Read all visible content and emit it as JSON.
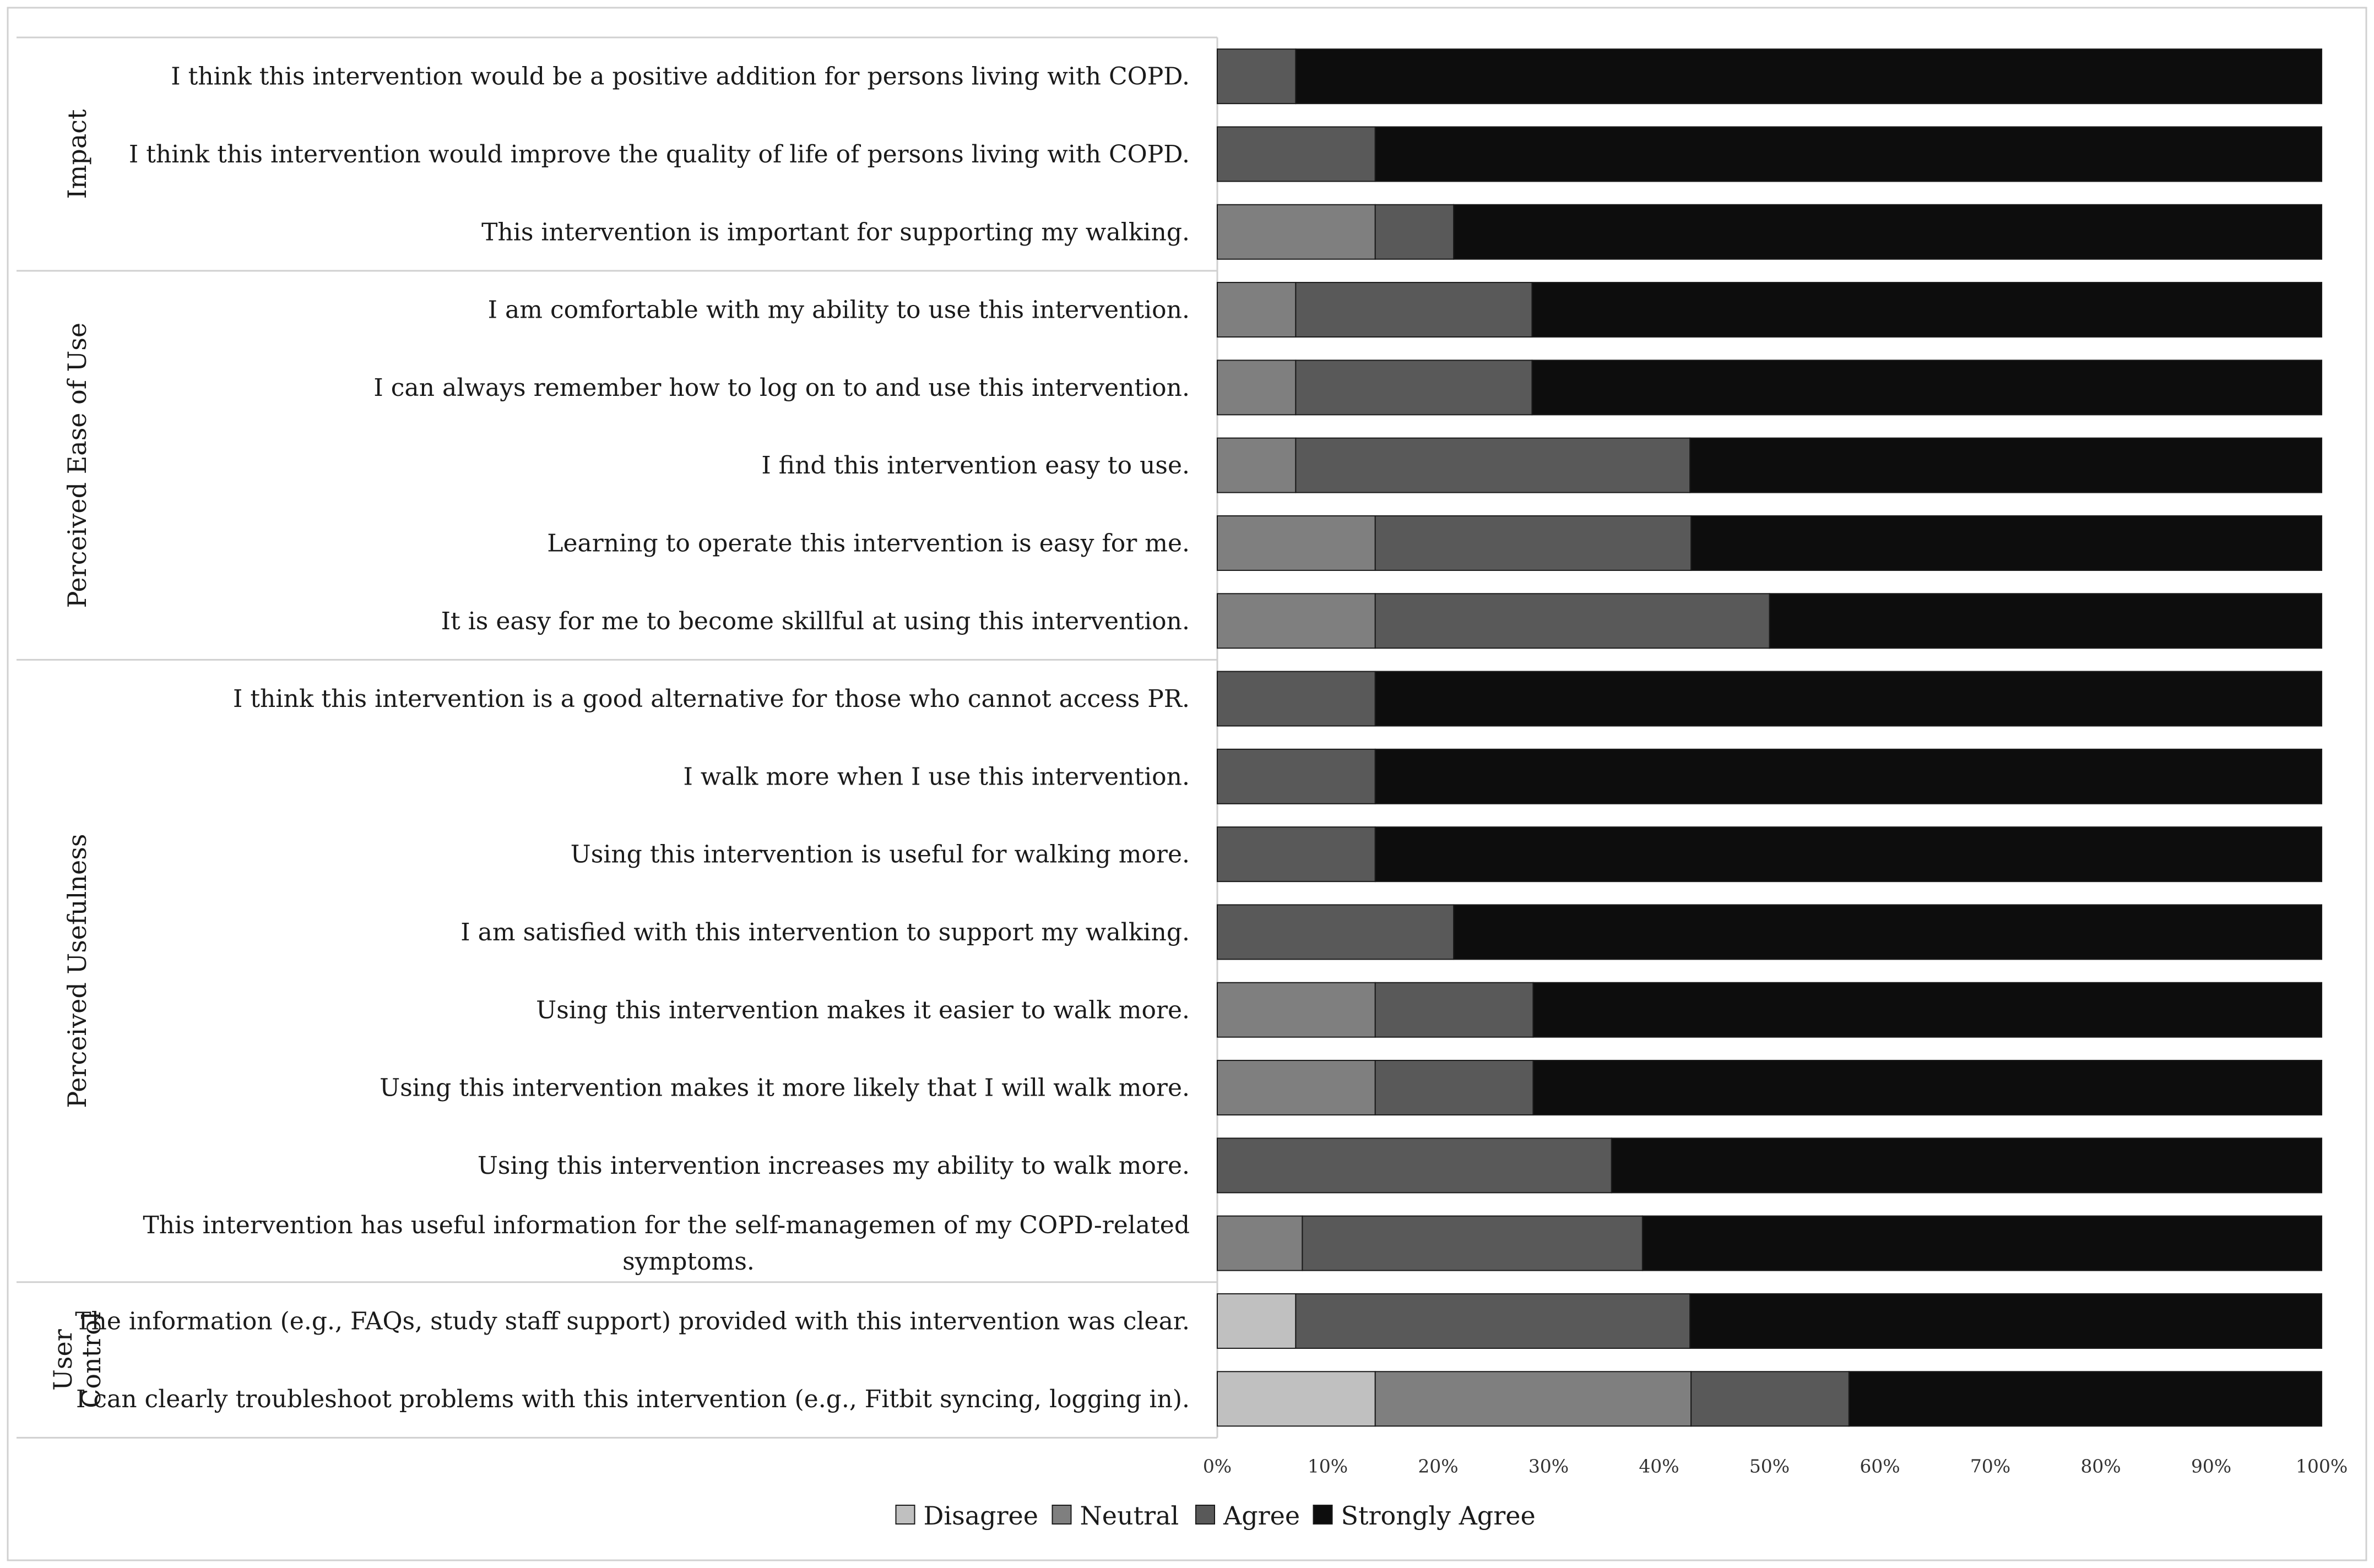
{
  "chart_data": {
    "type": "bar",
    "orientation": "horizontal",
    "stacked": "percent",
    "x_ticks": [
      "0%",
      "10%",
      "20%",
      "30%",
      "40%",
      "50%",
      "60%",
      "70%",
      "80%",
      "90%",
      "100%"
    ],
    "xlim": [
      0,
      100
    ],
    "legend_position": "bottom-center",
    "series": [
      {
        "name": "Disagree",
        "color": "#c0c0c0"
      },
      {
        "name": "Neutral",
        "color": "#7f7f7f"
      },
      {
        "name": "Agree",
        "color": "#595959"
      },
      {
        "name": "Strongly Agree",
        "color": "#0d0d0d"
      }
    ],
    "groups": [
      {
        "label": "Impact",
        "label_lines": [
          "Impact"
        ],
        "rows": [
          {
            "label": "I think this intervention would be a positive addition for persons living with COPD.",
            "values": [
              0,
              0,
              7.1,
              92.9
            ]
          },
          {
            "label": "I think this intervention would improve the quality of life of persons living with COPD.",
            "values": [
              0,
              0,
              14.3,
              85.7
            ]
          },
          {
            "label": "This intervention is important for supporting my walking.",
            "values": [
              0,
              14.3,
              7.1,
              78.6
            ]
          }
        ]
      },
      {
        "label": "Perceived Ease of Use",
        "label_lines": [
          "Perceived Ease of Use"
        ],
        "rows": [
          {
            "label": "I am comfortable with my ability to use this intervention.",
            "values": [
              0,
              7.1,
              21.4,
              71.5
            ]
          },
          {
            "label": "I can always remember how to log on to and use this intervention.",
            "values": [
              0,
              7.1,
              21.4,
              71.5
            ]
          },
          {
            "label": "I find this intervention easy to use.",
            "values": [
              0,
              7.1,
              35.7,
              57.2
            ]
          },
          {
            "label": "Learning to operate this intervention is easy for me.",
            "values": [
              0,
              14.3,
              28.6,
              57.1
            ]
          },
          {
            "label": "It is easy for me to become skillful at using this intervention.",
            "values": [
              0,
              14.3,
              35.7,
              50.0
            ]
          }
        ]
      },
      {
        "label": "Perceived Usefulness",
        "label_lines": [
          "Perceived Usefulness"
        ],
        "rows": [
          {
            "label": "I think this intervention is a good alternative for those who cannot access PR.",
            "values": [
              0,
              0,
              14.3,
              85.7
            ]
          },
          {
            "label": "I walk more when I use this intervention.",
            "values": [
              0,
              0,
              14.3,
              85.7
            ]
          },
          {
            "label": "Using this intervention is useful for walking more.",
            "values": [
              0,
              0,
              14.3,
              85.7
            ]
          },
          {
            "label": "I am satisfied with this intervention to support my walking.",
            "values": [
              0,
              0,
              21.4,
              78.6
            ]
          },
          {
            "label": "Using this intervention makes it easier to walk more.",
            "values": [
              0,
              14.3,
              14.3,
              71.4
            ]
          },
          {
            "label": "Using this intervention makes it more likely that I will walk more.",
            "values": [
              0,
              14.3,
              14.3,
              71.4
            ]
          },
          {
            "label": "Using this intervention increases my ability to walk more.",
            "values": [
              0,
              0,
              35.7,
              64.3
            ]
          },
          {
            "label": "This intervention has useful information for the self-managemen of my COPD-related symptoms.",
            "label_lines": [
              "This intervention has useful information for the self-managemen of my COPD-related",
              "symptoms."
            ],
            "values": [
              0,
              7.7,
              30.8,
              61.5
            ]
          }
        ]
      },
      {
        "label": "User Control",
        "label_lines": [
          "User",
          "Control"
        ],
        "rows": [
          {
            "label": "The information (e.g., FAQs, study staff support) provided with this intervention was clear.",
            "values": [
              7.1,
              0,
              35.7,
              57.2
            ]
          },
          {
            "label": "I can clearly troubleshoot problems with this intervention (e.g., Fitbit syncing, logging in).",
            "values": [
              14.3,
              28.6,
              14.3,
              42.8
            ]
          }
        ]
      }
    ]
  }
}
